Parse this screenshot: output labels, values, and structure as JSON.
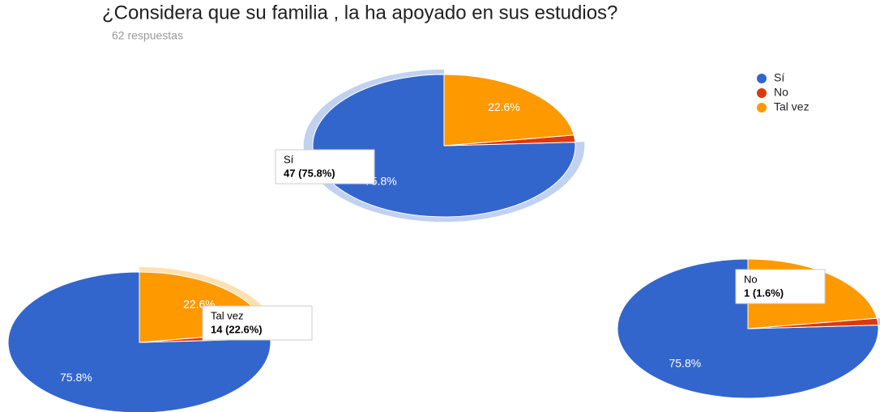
{
  "chart_data": [
    {
      "type": "pie",
      "title": "¿Considera que su familia , la ha apoyado en sus estudios?",
      "subtitle": "62 respuestas",
      "categories": [
        "Sí",
        "No",
        "Tal vez"
      ],
      "values": [
        75.8,
        1.6,
        22.6
      ],
      "value_labels": [
        "75.8%",
        null,
        "22.6%"
      ],
      "colors": [
        "#3366cc",
        "#dc3912",
        "#ff9900"
      ],
      "legend": "right",
      "tooltip": {
        "category": "Sí",
        "text": "47 (75.8%)"
      }
    },
    {
      "type": "pie",
      "categories": [
        "Sí",
        "No",
        "Tal vez"
      ],
      "values": [
        75.8,
        1.6,
        22.6
      ],
      "value_labels": [
        "75.8%",
        null,
        "22.6%"
      ],
      "colors": [
        "#3366cc",
        "#dc3912",
        "#ff9900"
      ],
      "tooltip": {
        "category": "Tal vez",
        "text": "14 (22.6%)"
      }
    },
    {
      "type": "pie",
      "categories": [
        "Sí",
        "No",
        "Tal vez"
      ],
      "values": [
        75.8,
        1.6,
        22.6
      ],
      "value_labels": [
        "75.8%",
        null,
        "22.6%"
      ],
      "colors": [
        "#3366cc",
        "#dc3912",
        "#ff9900"
      ],
      "tooltip": {
        "category": "No",
        "text": "1 (1.6%)"
      }
    }
  ]
}
